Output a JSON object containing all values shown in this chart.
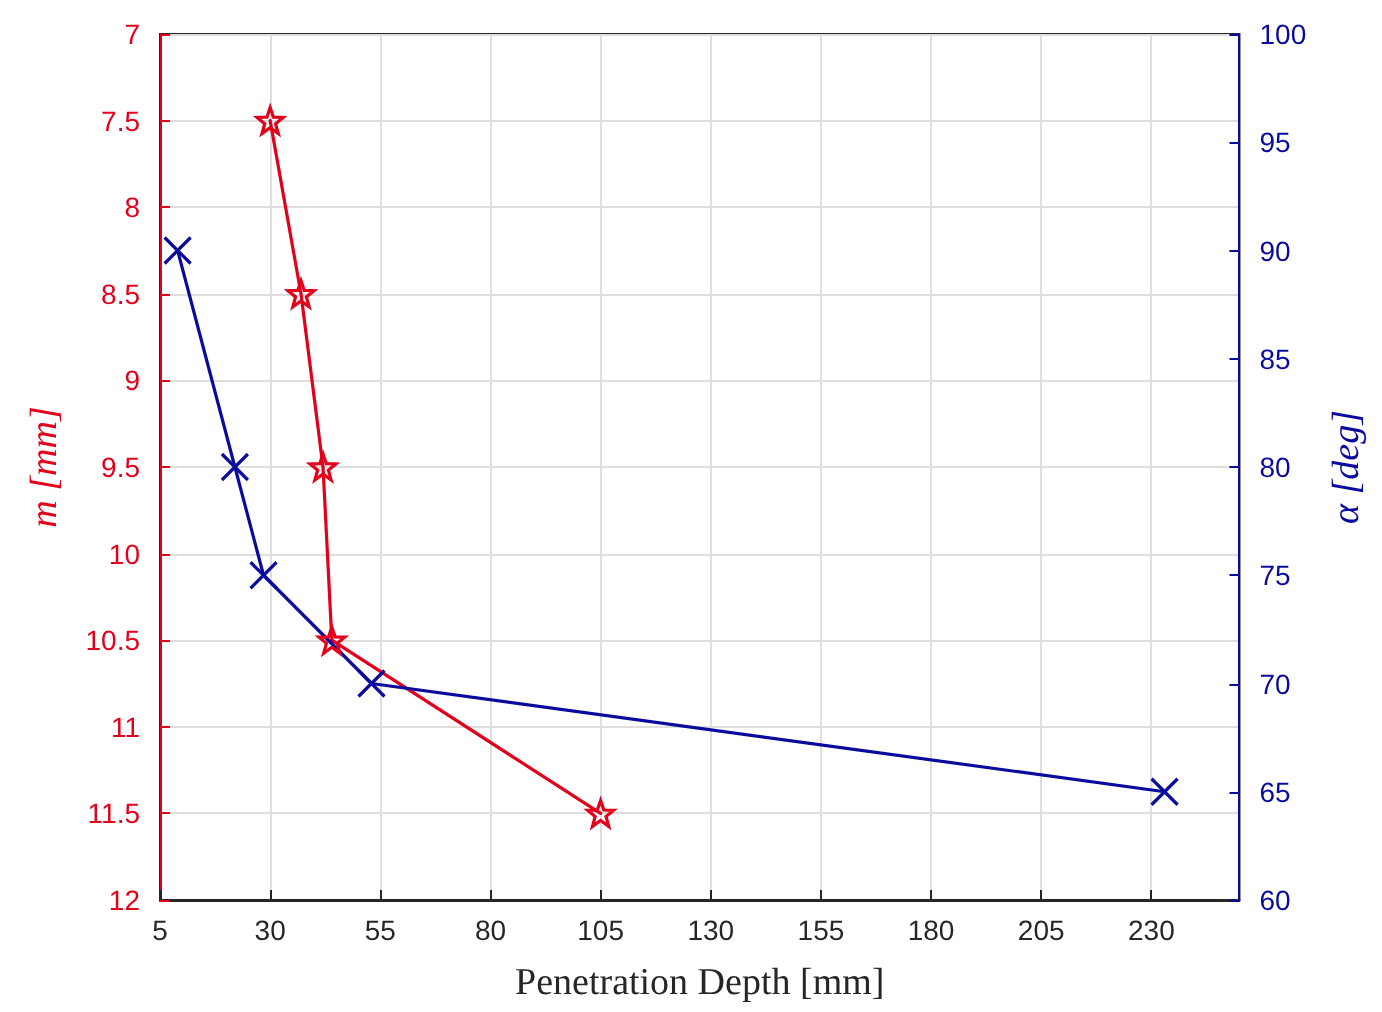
{
  "chart_data": {
    "type": "line",
    "xlabel": "Penetration Depth [mm]",
    "ylabel": "m [mm]",
    "y2label": "α [deg]",
    "xlim": [
      5,
      250
    ],
    "xticks": [
      5,
      30,
      55,
      80,
      105,
      130,
      155,
      180,
      205,
      230
    ],
    "ylim": [
      12,
      7
    ],
    "yticks": [
      7,
      7.5,
      8,
      8.5,
      9,
      9.5,
      10,
      10.5,
      11,
      11.5,
      12
    ],
    "y2lim": [
      60,
      100
    ],
    "y2ticks": [
      60,
      65,
      70,
      75,
      80,
      85,
      90,
      95,
      100
    ],
    "grid": true,
    "line_style": "solid",
    "series": [
      {
        "color": "#e3001b",
        "marker": "star",
        "x": [
          30,
          37,
          42,
          44,
          105
        ],
        "values": [
          7.5,
          8.5,
          9.5,
          10.5,
          11.5
        ]
      },
      {
        "color": "#0a0a9e",
        "marker": "cross",
        "axis": "y2",
        "x": [
          9,
          22,
          28.5,
          53,
          233
        ],
        "values": [
          90,
          80,
          75,
          70,
          65
        ]
      }
    ]
  }
}
